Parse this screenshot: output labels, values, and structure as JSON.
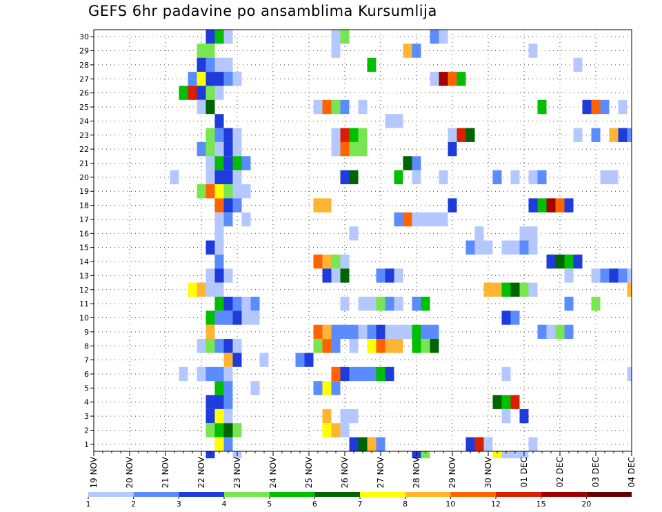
{
  "title": "GEFS 6hr padavine po ansamblima Kursumlija",
  "chart_data": {
    "type": "heatmap",
    "title": "GEFS 6hr padavine po ansamblima Kursumlija",
    "xlabel": "",
    "ylabel": "",
    "x_tick_labels": [
      "19 NOV",
      "20 NOV",
      "21 NOV",
      "22 NOV",
      "23 NOV",
      "24 NOV",
      "25 NOV",
      "26 NOV",
      "27 NOV",
      "28 NOV",
      "29 NOV",
      "30 NOV",
      "01 DEC",
      "02 DEC",
      "03 DEC",
      "04 DEC"
    ],
    "y_members": [
      1,
      2,
      3,
      4,
      5,
      6,
      7,
      8,
      9,
      10,
      11,
      12,
      13,
      14,
      15,
      16,
      17,
      18,
      19,
      20,
      21,
      22,
      23,
      24,
      25,
      26,
      27,
      28,
      29,
      30
    ],
    "time_step_hours": 6,
    "xlim_steps": [
      0,
      60
    ],
    "ylim": [
      0.5,
      30.5
    ],
    "grid": true,
    "legend": {
      "placement": "bottom",
      "thresholds": [
        "1",
        "2",
        "3",
        "4",
        "5",
        "6",
        "7",
        "8",
        "10",
        "12",
        "15",
        "20"
      ],
      "colors": [
        "#b4c8ff",
        "#5a8cff",
        "#1e3cdc",
        "#78e650",
        "#00be00",
        "#006400",
        "#ffff00",
        "#ffb432",
        "#ff6400",
        "#dc1e00",
        "#a00000",
        "#640000"
      ]
    },
    "cells": [
      [
        30,
        13,
        2
      ],
      [
        30,
        14,
        4
      ],
      [
        30,
        15,
        0
      ],
      [
        30,
        27,
        0
      ],
      [
        30,
        28,
        3
      ],
      [
        30,
        38,
        1
      ],
      [
        30,
        39,
        0
      ],
      [
        29,
        12,
        3
      ],
      [
        29,
        13,
        3
      ],
      [
        29,
        27,
        0
      ],
      [
        29,
        35,
        7
      ],
      [
        29,
        36,
        1
      ],
      [
        29,
        49,
        0
      ],
      [
        28,
        12,
        2
      ],
      [
        28,
        13,
        1
      ],
      [
        28,
        14,
        0
      ],
      [
        28,
        15,
        0
      ],
      [
        28,
        31,
        4
      ],
      [
        28,
        54,
        0
      ],
      [
        27,
        11,
        1
      ],
      [
        27,
        12,
        6
      ],
      [
        27,
        13,
        2
      ],
      [
        27,
        14,
        2
      ],
      [
        27,
        15,
        1
      ],
      [
        27,
        16,
        0
      ],
      [
        27,
        38,
        0
      ],
      [
        27,
        39,
        10
      ],
      [
        27,
        40,
        8
      ],
      [
        27,
        41,
        4
      ],
      [
        26,
        10,
        4
      ],
      [
        26,
        11,
        9
      ],
      [
        26,
        12,
        2
      ],
      [
        26,
        13,
        3
      ],
      [
        26,
        14,
        0
      ],
      [
        25,
        12,
        0
      ],
      [
        25,
        13,
        5
      ],
      [
        25,
        25,
        0
      ],
      [
        25,
        26,
        8
      ],
      [
        25,
        27,
        3
      ],
      [
        25,
        28,
        1
      ],
      [
        25,
        30,
        0
      ],
      [
        25,
        50,
        4
      ],
      [
        25,
        55,
        2
      ],
      [
        25,
        56,
        8
      ],
      [
        25,
        57,
        1
      ],
      [
        25,
        59,
        0
      ],
      [
        24,
        14,
        2
      ],
      [
        24,
        33,
        0
      ],
      [
        24,
        34,
        0
      ],
      [
        23,
        13,
        3
      ],
      [
        23,
        14,
        1
      ],
      [
        23,
        15,
        2
      ],
      [
        23,
        16,
        0
      ],
      [
        23,
        27,
        0
      ],
      [
        23,
        28,
        9
      ],
      [
        23,
        29,
        4
      ],
      [
        23,
        30,
        3
      ],
      [
        23,
        40,
        0
      ],
      [
        23,
        41,
        9
      ],
      [
        23,
        42,
        5
      ],
      [
        23,
        54,
        0
      ],
      [
        23,
        56,
        1
      ],
      [
        23,
        58,
        7
      ],
      [
        23,
        59,
        2
      ],
      [
        23,
        60,
        1
      ],
      [
        22,
        12,
        1
      ],
      [
        22,
        13,
        3
      ],
      [
        22,
        14,
        0
      ],
      [
        22,
        15,
        2
      ],
      [
        22,
        16,
        0
      ],
      [
        22,
        27,
        0
      ],
      [
        22,
        28,
        8
      ],
      [
        22,
        29,
        3
      ],
      [
        22,
        30,
        3
      ],
      [
        22,
        40,
        2
      ],
      [
        21,
        13,
        0
      ],
      [
        21,
        14,
        4
      ],
      [
        21,
        15,
        2
      ],
      [
        21,
        16,
        4
      ],
      [
        21,
        17,
        1
      ],
      [
        21,
        35,
        5
      ],
      [
        21,
        36,
        1
      ],
      [
        20,
        9,
        0
      ],
      [
        20,
        13,
        0
      ],
      [
        20,
        14,
        2
      ],
      [
        20,
        15,
        2
      ],
      [
        20,
        16,
        0
      ],
      [
        20,
        28,
        2
      ],
      [
        20,
        29,
        5
      ],
      [
        20,
        34,
        4
      ],
      [
        20,
        36,
        0
      ],
      [
        20,
        39,
        0
      ],
      [
        20,
        45,
        1
      ],
      [
        20,
        47,
        0
      ],
      [
        20,
        49,
        0
      ],
      [
        20,
        50,
        1
      ],
      [
        20,
        57,
        0
      ],
      [
        20,
        58,
        0
      ],
      [
        19,
        12,
        3
      ],
      [
        19,
        13,
        8
      ],
      [
        19,
        14,
        6
      ],
      [
        19,
        15,
        3
      ],
      [
        19,
        16,
        0
      ],
      [
        19,
        17,
        0
      ],
      [
        18,
        14,
        8
      ],
      [
        18,
        15,
        2
      ],
      [
        18,
        16,
        1
      ],
      [
        18,
        25,
        7
      ],
      [
        18,
        26,
        7
      ],
      [
        18,
        40,
        2
      ],
      [
        18,
        49,
        2
      ],
      [
        18,
        50,
        4
      ],
      [
        18,
        51,
        10
      ],
      [
        18,
        52,
        8
      ],
      [
        18,
        53,
        2
      ],
      [
        17,
        14,
        0
      ],
      [
        17,
        15,
        1
      ],
      [
        17,
        17,
        0
      ],
      [
        17,
        34,
        1
      ],
      [
        17,
        35,
        8
      ],
      [
        17,
        36,
        0
      ],
      [
        17,
        37,
        0
      ],
      [
        17,
        38,
        0
      ],
      [
        17,
        39,
        0
      ],
      [
        16,
        14,
        0
      ],
      [
        16,
        29,
        0
      ],
      [
        16,
        43,
        0
      ],
      [
        16,
        48,
        0
      ],
      [
        16,
        49,
        0
      ],
      [
        15,
        13,
        2
      ],
      [
        15,
        14,
        0
      ],
      [
        15,
        42,
        1
      ],
      [
        15,
        43,
        0
      ],
      [
        15,
        44,
        0
      ],
      [
        15,
        46,
        0
      ],
      [
        15,
        47,
        0
      ],
      [
        15,
        48,
        1
      ],
      [
        15,
        49,
        0
      ],
      [
        14,
        14,
        1
      ],
      [
        14,
        25,
        8
      ],
      [
        14,
        26,
        7
      ],
      [
        14,
        27,
        3
      ],
      [
        14,
        28,
        0
      ],
      [
        14,
        51,
        2
      ],
      [
        14,
        52,
        5
      ],
      [
        14,
        53,
        4
      ],
      [
        14,
        54,
        2
      ],
      [
        13,
        13,
        0
      ],
      [
        13,
        14,
        2
      ],
      [
        13,
        15,
        0
      ],
      [
        13,
        26,
        2
      ],
      [
        13,
        27,
        0
      ],
      [
        13,
        28,
        5
      ],
      [
        13,
        32,
        1
      ],
      [
        13,
        33,
        2
      ],
      [
        13,
        34,
        0
      ],
      [
        13,
        53,
        0
      ],
      [
        13,
        56,
        0
      ],
      [
        13,
        57,
        1
      ],
      [
        13,
        58,
        2
      ],
      [
        13,
        59,
        1
      ],
      [
        13,
        60,
        0
      ],
      [
        12,
        11,
        6
      ],
      [
        12,
        12,
        7
      ],
      [
        12,
        13,
        0
      ],
      [
        12,
        14,
        0
      ],
      [
        12,
        44,
        7
      ],
      [
        12,
        45,
        7
      ],
      [
        12,
        46,
        4
      ],
      [
        12,
        47,
        5
      ],
      [
        12,
        48,
        3
      ],
      [
        12,
        49,
        0
      ],
      [
        12,
        60,
        7
      ],
      [
        11,
        14,
        4
      ],
      [
        11,
        15,
        2
      ],
      [
        11,
        16,
        1
      ],
      [
        11,
        17,
        0
      ],
      [
        11,
        18,
        1
      ],
      [
        11,
        28,
        0
      ],
      [
        11,
        30,
        0
      ],
      [
        11,
        31,
        0
      ],
      [
        11,
        32,
        3
      ],
      [
        11,
        33,
        1
      ],
      [
        11,
        34,
        0
      ],
      [
        11,
        36,
        1
      ],
      [
        11,
        37,
        4
      ],
      [
        11,
        53,
        1
      ],
      [
        11,
        56,
        3
      ],
      [
        10,
        13,
        4
      ],
      [
        10,
        14,
        1
      ],
      [
        10,
        15,
        1
      ],
      [
        10,
        16,
        2
      ],
      [
        10,
        17,
        0
      ],
      [
        10,
        18,
        0
      ],
      [
        10,
        46,
        2
      ],
      [
        10,
        47,
        1
      ],
      [
        9,
        13,
        7
      ],
      [
        9,
        25,
        8
      ],
      [
        9,
        26,
        7
      ],
      [
        9,
        27,
        1
      ],
      [
        9,
        28,
        1
      ],
      [
        9,
        29,
        1
      ],
      [
        9,
        30,
        0
      ],
      [
        9,
        31,
        1
      ],
      [
        9,
        32,
        2
      ],
      [
        9,
        33,
        0
      ],
      [
        9,
        34,
        0
      ],
      [
        9,
        35,
        0
      ],
      [
        9,
        36,
        4
      ],
      [
        9,
        37,
        1
      ],
      [
        9,
        38,
        1
      ],
      [
        9,
        50,
        1
      ],
      [
        9,
        51,
        0
      ],
      [
        9,
        52,
        3
      ],
      [
        9,
        53,
        1
      ],
      [
        8,
        12,
        0
      ],
      [
        8,
        13,
        3
      ],
      [
        8,
        14,
        1
      ],
      [
        8,
        15,
        2
      ],
      [
        8,
        16,
        0
      ],
      [
        8,
        25,
        3
      ],
      [
        8,
        26,
        8
      ],
      [
        8,
        27,
        1
      ],
      [
        8,
        29,
        0
      ],
      [
        8,
        31,
        6
      ],
      [
        8,
        32,
        8
      ],
      [
        8,
        33,
        7
      ],
      [
        8,
        34,
        7
      ],
      [
        8,
        36,
        4
      ],
      [
        8,
        37,
        3
      ],
      [
        8,
        38,
        5
      ],
      [
        7,
        15,
        7
      ],
      [
        7,
        16,
        2
      ],
      [
        7,
        19,
        0
      ],
      [
        7,
        23,
        1
      ],
      [
        7,
        24,
        2
      ],
      [
        6,
        10,
        0
      ],
      [
        6,
        12,
        0
      ],
      [
        6,
        13,
        1
      ],
      [
        6,
        14,
        1
      ],
      [
        6,
        15,
        0
      ],
      [
        6,
        27,
        8
      ],
      [
        6,
        28,
        2
      ],
      [
        6,
        29,
        1
      ],
      [
        6,
        30,
        1
      ],
      [
        6,
        31,
        1
      ],
      [
        6,
        32,
        4
      ],
      [
        6,
        33,
        2
      ],
      [
        6,
        46,
        0
      ],
      [
        6,
        60,
        0
      ],
      [
        5,
        14,
        4
      ],
      [
        5,
        15,
        1
      ],
      [
        5,
        18,
        0
      ],
      [
        5,
        25,
        1
      ],
      [
        5,
        26,
        6
      ],
      [
        5,
        27,
        1
      ],
      [
        4,
        13,
        2
      ],
      [
        4,
        14,
        2
      ],
      [
        4,
        15,
        1
      ],
      [
        4,
        45,
        5
      ],
      [
        4,
        46,
        4
      ],
      [
        4,
        47,
        9
      ],
      [
        3,
        13,
        2
      ],
      [
        3,
        14,
        6
      ],
      [
        3,
        15,
        0
      ],
      [
        3,
        26,
        7
      ],
      [
        3,
        28,
        0
      ],
      [
        3,
        29,
        0
      ],
      [
        3,
        46,
        0
      ],
      [
        3,
        48,
        2
      ],
      [
        2,
        13,
        3
      ],
      [
        2,
        14,
        4
      ],
      [
        2,
        15,
        5
      ],
      [
        2,
        16,
        3
      ],
      [
        2,
        26,
        6
      ],
      [
        2,
        27,
        7
      ],
      [
        2,
        28,
        0
      ],
      [
        1,
        14,
        6
      ],
      [
        1,
        15,
        1
      ],
      [
        1,
        29,
        2
      ],
      [
        1,
        30,
        5
      ],
      [
        1,
        31,
        7
      ],
      [
        1,
        32,
        1
      ],
      [
        1,
        42,
        2
      ],
      [
        1,
        43,
        9
      ],
      [
        1,
        44,
        0
      ],
      [
        1,
        49,
        0
      ],
      [
        0,
        13,
        2
      ],
      [
        0,
        16,
        0
      ],
      [
        0,
        36,
        2
      ],
      [
        0,
        37,
        3
      ],
      [
        0,
        45,
        6
      ],
      [
        0,
        46,
        0
      ],
      [
        0,
        47,
        0
      ],
      [
        0,
        48,
        0
      ]
    ]
  }
}
